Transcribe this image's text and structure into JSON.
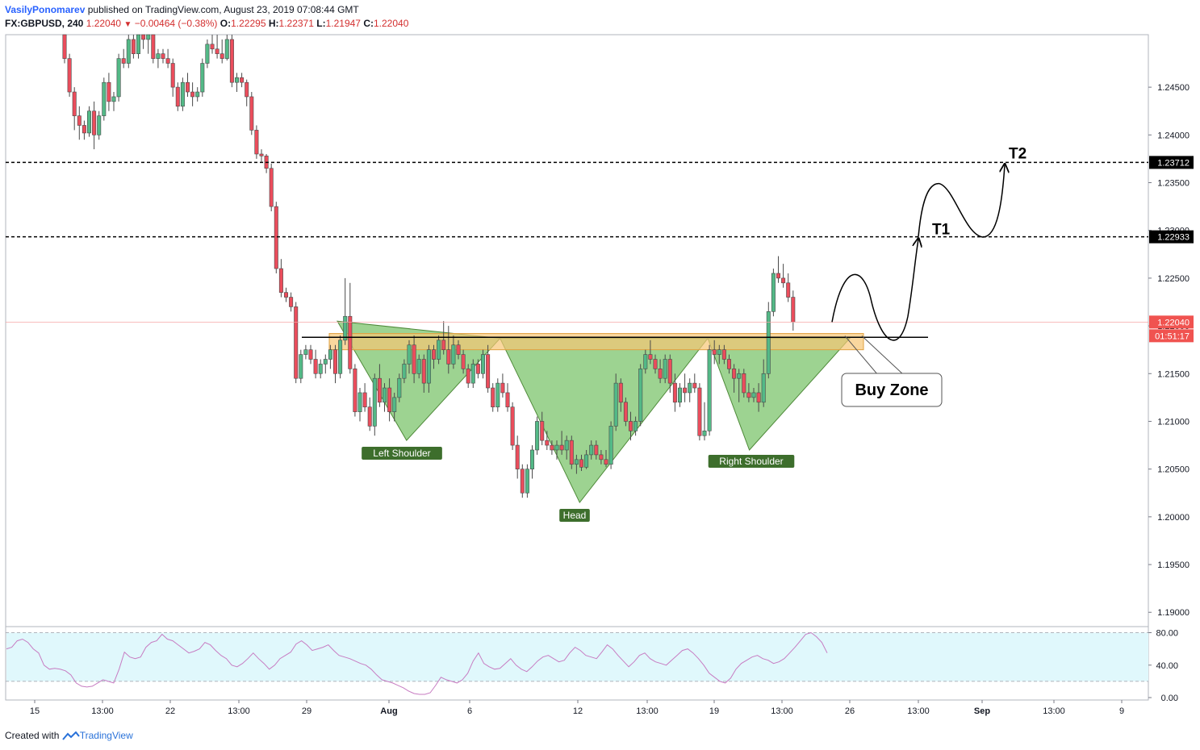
{
  "header": {
    "author": "VasilyPonomarev",
    "published": "published on TradingView.com, August 23, 2019 07:08:44 GMT",
    "symbol": "FX:GBPUSD, 240",
    "last": "1.22040",
    "change": "−0.00464 (−0.38%)",
    "o_label": "O:",
    "o": "1.22295",
    "h_label": "H:",
    "h": "1.22371",
    "l_label": "L:",
    "l": "1.21947",
    "c_label": "C:",
    "c": "1.22040"
  },
  "footer": {
    "created_with": "Created with",
    "brand": "TradingView"
  },
  "colors": {
    "up": "#53b987",
    "down": "#eb4d5c",
    "pattern_fill": "#8ccb7e",
    "zone_fill": "#f7c675",
    "label_bg": "#3d6e2c",
    "rsi_line": "#c77cc2",
    "rsi_band": "#e0f8fc",
    "last_price": "#f05350"
  },
  "chart_data": {
    "type": "candlestick",
    "y_axis": {
      "ticks": [
        "1.24500",
        "1.24000",
        "1.23500",
        "1.23000",
        "1.22500",
        "1.22000",
        "1.21500",
        "1.21000",
        "1.20500",
        "1.20000",
        "1.19500",
        "1.19000"
      ],
      "tick_values": [
        1.245,
        1.24,
        1.235,
        1.23,
        1.225,
        1.22,
        1.215,
        1.21,
        1.205,
        1.2,
        1.195,
        1.19
      ],
      "range": [
        1.1885,
        1.2505
      ]
    },
    "x_axis": {
      "ticks": [
        "15",
        "13:00",
        "22",
        "13:00",
        "29",
        "Aug",
        "6",
        "12",
        "13:00",
        "19",
        "13:00",
        "26",
        "13:00",
        "Sep",
        "13:00",
        "9"
      ],
      "bold": [
        "Aug",
        "Sep"
      ]
    },
    "price_labels": [
      {
        "text": "1.23712",
        "value": 1.23712
      },
      {
        "text": "1.22933",
        "value": 1.22933
      },
      {
        "text": "1.22040",
        "value": 1.2204
      },
      {
        "text": "01:51:17",
        "value": 1.2189
      }
    ],
    "horizontal_lines": [
      {
        "value": 1.23712,
        "style": "dashed",
        "label": "T2"
      },
      {
        "value": 1.22933,
        "style": "dashed",
        "label": "T1"
      }
    ],
    "neckline": 1.2188,
    "buy_zone": [
      1.2175,
      1.2192
    ],
    "pattern_labels": [
      "Left Shoulder",
      "Head",
      "Right Shoulder"
    ],
    "annotation": "Buy Zone",
    "pattern_points": [
      {
        "t": 0,
        "v": 1.2205
      },
      {
        "t": 20,
        "v": 1.208
      },
      {
        "t": 47,
        "v": 1.2187
      },
      {
        "t": 70,
        "v": 1.2015
      },
      {
        "t": 107,
        "v": 1.2187
      },
      {
        "t": 119,
        "v": 1.207
      },
      {
        "t": 148,
        "v": 1.2187
      }
    ],
    "candles": [
      {
        "o": 1.2515,
        "h": 1.2525,
        "l": 1.2475,
        "c": 1.248
      },
      {
        "o": 1.248,
        "h": 1.2485,
        "l": 1.244,
        "c": 1.2445
      },
      {
        "o": 1.2445,
        "h": 1.245,
        "l": 1.2405,
        "c": 1.242
      },
      {
        "o": 1.242,
        "h": 1.243,
        "l": 1.2395,
        "c": 1.241
      },
      {
        "o": 1.241,
        "h": 1.2415,
        "l": 1.2395,
        "c": 1.2402
      },
      {
        "o": 1.2402,
        "h": 1.243,
        "l": 1.2398,
        "c": 1.2425
      },
      {
        "o": 1.2425,
        "h": 1.2435,
        "l": 1.2385,
        "c": 1.24
      },
      {
        "o": 1.24,
        "h": 1.2425,
        "l": 1.2395,
        "c": 1.242
      },
      {
        "o": 1.242,
        "h": 1.246,
        "l": 1.2415,
        "c": 1.2455
      },
      {
        "o": 1.2455,
        "h": 1.2465,
        "l": 1.2425,
        "c": 1.2435
      },
      {
        "o": 1.2435,
        "h": 1.2445,
        "l": 1.2425,
        "c": 1.244
      },
      {
        "o": 1.244,
        "h": 1.2485,
        "l": 1.2435,
        "c": 1.248
      },
      {
        "o": 1.248,
        "h": 1.249,
        "l": 1.247,
        "c": 1.2475
      },
      {
        "o": 1.2475,
        "h": 1.2505,
        "l": 1.247,
        "c": 1.25
      },
      {
        "o": 1.25,
        "h": 1.251,
        "l": 1.248,
        "c": 1.2485
      },
      {
        "o": 1.2485,
        "h": 1.2515,
        "l": 1.248,
        "c": 1.251
      },
      {
        "o": 1.251,
        "h": 1.2525,
        "l": 1.249,
        "c": 1.25
      },
      {
        "o": 1.25,
        "h": 1.2515,
        "l": 1.2485,
        "c": 1.2505
      },
      {
        "o": 1.2505,
        "h": 1.251,
        "l": 1.2475,
        "c": 1.248
      },
      {
        "o": 1.248,
        "h": 1.249,
        "l": 1.247,
        "c": 1.2485
      },
      {
        "o": 1.2485,
        "h": 1.249,
        "l": 1.2475,
        "c": 1.248
      },
      {
        "o": 1.248,
        "h": 1.249,
        "l": 1.247,
        "c": 1.2475
      },
      {
        "o": 1.2475,
        "h": 1.248,
        "l": 1.244,
        "c": 1.245
      },
      {
        "o": 1.245,
        "h": 1.2455,
        "l": 1.2425,
        "c": 1.243
      },
      {
        "o": 1.243,
        "h": 1.246,
        "l": 1.2425,
        "c": 1.2455
      },
      {
        "o": 1.2455,
        "h": 1.2465,
        "l": 1.244,
        "c": 1.2445
      },
      {
        "o": 1.2445,
        "h": 1.2455,
        "l": 1.243,
        "c": 1.244
      },
      {
        "o": 1.244,
        "h": 1.245,
        "l": 1.2435,
        "c": 1.2445
      },
      {
        "o": 1.2445,
        "h": 1.248,
        "l": 1.244,
        "c": 1.2475
      },
      {
        "o": 1.2475,
        "h": 1.25,
        "l": 1.247,
        "c": 1.2495
      },
      {
        "o": 1.2495,
        "h": 1.251,
        "l": 1.2485,
        "c": 1.249
      },
      {
        "o": 1.249,
        "h": 1.2505,
        "l": 1.248,
        "c": 1.2485
      },
      {
        "o": 1.2485,
        "h": 1.25,
        "l": 1.2475,
        "c": 1.248
      },
      {
        "o": 1.248,
        "h": 1.2505,
        "l": 1.2478,
        "c": 1.25
      },
      {
        "o": 1.25,
        "h": 1.2505,
        "l": 1.245,
        "c": 1.2455
      },
      {
        "o": 1.2455,
        "h": 1.2465,
        "l": 1.2445,
        "c": 1.246
      },
      {
        "o": 1.246,
        "h": 1.2465,
        "l": 1.245,
        "c": 1.2455
      },
      {
        "o": 1.2455,
        "h": 1.2458,
        "l": 1.243,
        "c": 1.244
      },
      {
        "o": 1.244,
        "h": 1.2445,
        "l": 1.24,
        "c": 1.2405
      },
      {
        "o": 1.2405,
        "h": 1.241,
        "l": 1.2375,
        "c": 1.238
      },
      {
        "o": 1.238,
        "h": 1.2385,
        "l": 1.2372,
        "c": 1.2378
      },
      {
        "o": 1.2378,
        "h": 1.238,
        "l": 1.236,
        "c": 1.2365
      },
      {
        "o": 1.2365,
        "h": 1.237,
        "l": 1.232,
        "c": 1.2325
      },
      {
        "o": 1.2325,
        "h": 1.233,
        "l": 1.2255,
        "c": 1.226
      },
      {
        "o": 1.226,
        "h": 1.227,
        "l": 1.223,
        "c": 1.2235
      },
      {
        "o": 1.2235,
        "h": 1.224,
        "l": 1.2225,
        "c": 1.223
      },
      {
        "o": 1.223,
        "h": 1.2235,
        "l": 1.2215,
        "c": 1.222
      },
      {
        "o": 1.222,
        "h": 1.2225,
        "l": 1.214,
        "c": 1.2145
      },
      {
        "o": 1.2145,
        "h": 1.2175,
        "l": 1.214,
        "c": 1.217
      },
      {
        "o": 1.217,
        "h": 1.218,
        "l": 1.2165,
        "c": 1.2175
      },
      {
        "o": 1.2175,
        "h": 1.218,
        "l": 1.216,
        "c": 1.2165
      },
      {
        "o": 1.2165,
        "h": 1.2175,
        "l": 1.2145,
        "c": 1.215
      },
      {
        "o": 1.215,
        "h": 1.2165,
        "l": 1.2145,
        "c": 1.216
      },
      {
        "o": 1.216,
        "h": 1.217,
        "l": 1.215,
        "c": 1.2165
      },
      {
        "o": 1.2165,
        "h": 1.218,
        "l": 1.2155,
        "c": 1.2175
      },
      {
        "o": 1.2175,
        "h": 1.218,
        "l": 1.214,
        "c": 1.215
      },
      {
        "o": 1.215,
        "h": 1.219,
        "l": 1.2145,
        "c": 1.2185
      },
      {
        "o": 1.2185,
        "h": 1.225,
        "l": 1.218,
        "c": 1.221
      },
      {
        "o": 1.221,
        "h": 1.2245,
        "l": 1.215,
        "c": 1.2155
      },
      {
        "o": 1.2155,
        "h": 1.216,
        "l": 1.2105,
        "c": 1.211
      },
      {
        "o": 1.211,
        "h": 1.2135,
        "l": 1.21,
        "c": 1.213
      },
      {
        "o": 1.213,
        "h": 1.214,
        "l": 1.211,
        "c": 1.2115
      },
      {
        "o": 1.2115,
        "h": 1.2125,
        "l": 1.209,
        "c": 1.2095
      },
      {
        "o": 1.2095,
        "h": 1.215,
        "l": 1.2085,
        "c": 1.2145
      },
      {
        "o": 1.2145,
        "h": 1.216,
        "l": 1.2115,
        "c": 1.212
      },
      {
        "o": 1.212,
        "h": 1.214,
        "l": 1.211,
        "c": 1.2135
      },
      {
        "o": 1.2135,
        "h": 1.2145,
        "l": 1.21,
        "c": 1.211
      },
      {
        "o": 1.211,
        "h": 1.213,
        "l": 1.21,
        "c": 1.2125
      },
      {
        "o": 1.2125,
        "h": 1.215,
        "l": 1.212,
        "c": 1.2145
      },
      {
        "o": 1.2145,
        "h": 1.2165,
        "l": 1.214,
        "c": 1.216
      },
      {
        "o": 1.216,
        "h": 1.2185,
        "l": 1.215,
        "c": 1.218
      },
      {
        "o": 1.218,
        "h": 1.219,
        "l": 1.214,
        "c": 1.215
      },
      {
        "o": 1.215,
        "h": 1.217,
        "l": 1.2145,
        "c": 1.2165
      },
      {
        "o": 1.2165,
        "h": 1.217,
        "l": 1.213,
        "c": 1.214
      },
      {
        "o": 1.214,
        "h": 1.218,
        "l": 1.213,
        "c": 1.2175
      },
      {
        "o": 1.2175,
        "h": 1.218,
        "l": 1.2155,
        "c": 1.2165
      },
      {
        "o": 1.2165,
        "h": 1.219,
        "l": 1.216,
        "c": 1.2185
      },
      {
        "o": 1.2185,
        "h": 1.2205,
        "l": 1.217,
        "c": 1.2175
      },
      {
        "o": 1.2175,
        "h": 1.22,
        "l": 1.215,
        "c": 1.216
      },
      {
        "o": 1.216,
        "h": 1.219,
        "l": 1.2155,
        "c": 1.218
      },
      {
        "o": 1.218,
        "h": 1.2185,
        "l": 1.2165,
        "c": 1.217
      },
      {
        "o": 1.217,
        "h": 1.2175,
        "l": 1.215,
        "c": 1.2155
      },
      {
        "o": 1.2155,
        "h": 1.216,
        "l": 1.2135,
        "c": 1.214
      },
      {
        "o": 1.214,
        "h": 1.2165,
        "l": 1.2135,
        "c": 1.216
      },
      {
        "o": 1.216,
        "h": 1.2165,
        "l": 1.2145,
        "c": 1.215
      },
      {
        "o": 1.215,
        "h": 1.2175,
        "l": 1.2145,
        "c": 1.217
      },
      {
        "o": 1.217,
        "h": 1.218,
        "l": 1.213,
        "c": 1.2135
      },
      {
        "o": 1.2135,
        "h": 1.214,
        "l": 1.211,
        "c": 1.2115
      },
      {
        "o": 1.2115,
        "h": 1.2145,
        "l": 1.211,
        "c": 1.214
      },
      {
        "o": 1.214,
        "h": 1.215,
        "l": 1.2125,
        "c": 1.213
      },
      {
        "o": 1.213,
        "h": 1.214,
        "l": 1.211,
        "c": 1.2115
      },
      {
        "o": 1.2115,
        "h": 1.212,
        "l": 1.207,
        "c": 1.2075
      },
      {
        "o": 1.2075,
        "h": 1.2085,
        "l": 1.204,
        "c": 1.205
      },
      {
        "o": 1.205,
        "h": 1.2055,
        "l": 1.202,
        "c": 1.2025
      },
      {
        "o": 1.2025,
        "h": 1.2055,
        "l": 1.202,
        "c": 1.205
      },
      {
        "o": 1.205,
        "h": 1.2075,
        "l": 1.204,
        "c": 1.207
      },
      {
        "o": 1.207,
        "h": 1.2105,
        "l": 1.2065,
        "c": 1.21
      },
      {
        "o": 1.21,
        "h": 1.211,
        "l": 1.2075,
        "c": 1.208
      },
      {
        "o": 1.208,
        "h": 1.209,
        "l": 1.207,
        "c": 1.2075
      },
      {
        "o": 1.2075,
        "h": 1.208,
        "l": 1.2065,
        "c": 1.207
      },
      {
        "o": 1.207,
        "h": 1.208,
        "l": 1.206,
        "c": 1.2075
      },
      {
        "o": 1.2075,
        "h": 1.209,
        "l": 1.2065,
        "c": 1.207
      },
      {
        "o": 1.207,
        "h": 1.2085,
        "l": 1.206,
        "c": 1.208
      },
      {
        "o": 1.208,
        "h": 1.2085,
        "l": 1.205,
        "c": 1.2055
      },
      {
        "o": 1.2055,
        "h": 1.2065,
        "l": 1.2045,
        "c": 1.206
      },
      {
        "o": 1.206,
        "h": 1.2065,
        "l": 1.2048,
        "c": 1.2052
      },
      {
        "o": 1.2052,
        "h": 1.207,
        "l": 1.205,
        "c": 1.2065
      },
      {
        "o": 1.2065,
        "h": 1.208,
        "l": 1.206,
        "c": 1.2075
      },
      {
        "o": 1.2075,
        "h": 1.208,
        "l": 1.206,
        "c": 1.2065
      },
      {
        "o": 1.2065,
        "h": 1.207,
        "l": 1.2055,
        "c": 1.206
      },
      {
        "o": 1.206,
        "h": 1.207,
        "l": 1.2052,
        "c": 1.2055
      },
      {
        "o": 1.2055,
        "h": 1.21,
        "l": 1.205,
        "c": 1.2095
      },
      {
        "o": 1.2095,
        "h": 1.215,
        "l": 1.209,
        "c": 1.214
      },
      {
        "o": 1.214,
        "h": 1.2145,
        "l": 1.211,
        "c": 1.212
      },
      {
        "o": 1.212,
        "h": 1.2125,
        "l": 1.2095,
        "c": 1.21
      },
      {
        "o": 1.21,
        "h": 1.211,
        "l": 1.208,
        "c": 1.209
      },
      {
        "o": 1.209,
        "h": 1.2105,
        "l": 1.2085,
        "c": 1.21
      },
      {
        "o": 1.21,
        "h": 1.216,
        "l": 1.2095,
        "c": 1.2155
      },
      {
        "o": 1.2155,
        "h": 1.2175,
        "l": 1.215,
        "c": 1.217
      },
      {
        "o": 1.217,
        "h": 1.2185,
        "l": 1.216,
        "c": 1.2165
      },
      {
        "o": 1.2165,
        "h": 1.217,
        "l": 1.215,
        "c": 1.2155
      },
      {
        "o": 1.2155,
        "h": 1.2165,
        "l": 1.214,
        "c": 1.2145
      },
      {
        "o": 1.2145,
        "h": 1.217,
        "l": 1.214,
        "c": 1.2165
      },
      {
        "o": 1.2165,
        "h": 1.217,
        "l": 1.213,
        "c": 1.214
      },
      {
        "o": 1.214,
        "h": 1.215,
        "l": 1.211,
        "c": 1.212
      },
      {
        "o": 1.212,
        "h": 1.214,
        "l": 1.2115,
        "c": 1.2135
      },
      {
        "o": 1.2135,
        "h": 1.215,
        "l": 1.212,
        "c": 1.213
      },
      {
        "o": 1.213,
        "h": 1.2145,
        "l": 1.212,
        "c": 1.214
      },
      {
        "o": 1.214,
        "h": 1.215,
        "l": 1.213,
        "c": 1.2135
      },
      {
        "o": 1.2135,
        "h": 1.214,
        "l": 1.208,
        "c": 1.2085
      },
      {
        "o": 1.2085,
        "h": 1.212,
        "l": 1.208,
        "c": 1.209
      },
      {
        "o": 1.209,
        "h": 1.218,
        "l": 1.2085,
        "c": 1.2175
      },
      {
        "o": 1.2175,
        "h": 1.2185,
        "l": 1.216,
        "c": 1.217
      },
      {
        "o": 1.217,
        "h": 1.218,
        "l": 1.216,
        "c": 1.2175
      },
      {
        "o": 1.2175,
        "h": 1.218,
        "l": 1.216,
        "c": 1.2165
      },
      {
        "o": 1.2165,
        "h": 1.217,
        "l": 1.215,
        "c": 1.2155
      },
      {
        "o": 1.2155,
        "h": 1.216,
        "l": 1.213,
        "c": 1.2145
      },
      {
        "o": 1.2145,
        "h": 1.2155,
        "l": 1.212,
        "c": 1.215
      },
      {
        "o": 1.215,
        "h": 1.2155,
        "l": 1.2125,
        "c": 1.213
      },
      {
        "o": 1.213,
        "h": 1.214,
        "l": 1.212,
        "c": 1.2125
      },
      {
        "o": 1.2125,
        "h": 1.2135,
        "l": 1.212,
        "c": 1.213
      },
      {
        "o": 1.213,
        "h": 1.214,
        "l": 1.211,
        "c": 1.212
      },
      {
        "o": 1.212,
        "h": 1.2165,
        "l": 1.2115,
        "c": 1.215
      },
      {
        "o": 1.215,
        "h": 1.2225,
        "l": 1.2145,
        "c": 1.2215
      },
      {
        "o": 1.2215,
        "h": 1.226,
        "l": 1.221,
        "c": 1.2255
      },
      {
        "o": 1.2255,
        "h": 1.2273,
        "l": 1.2245,
        "c": 1.225
      },
      {
        "o": 1.225,
        "h": 1.2265,
        "l": 1.224,
        "c": 1.2245
      },
      {
        "o": 1.2245,
        "h": 1.2255,
        "l": 1.2225,
        "c": 1.223
      },
      {
        "o": 1.223,
        "h": 1.2237,
        "l": 1.2195,
        "c": 1.2204
      }
    ],
    "rsi": {
      "levels": [
        "80.00",
        "40.00",
        "0.00"
      ],
      "level_values": [
        80,
        40,
        0
      ],
      "band": [
        20,
        80
      ],
      "values": [
        60,
        62,
        70,
        72,
        68,
        60,
        55,
        40,
        35,
        36,
        35,
        33,
        28,
        18,
        14,
        13,
        14,
        18,
        22,
        20,
        18,
        35,
        56,
        50,
        48,
        50,
        62,
        68,
        70,
        78,
        72,
        70,
        65,
        60,
        55,
        57,
        60,
        68,
        65,
        58,
        52,
        48,
        40,
        38,
        42,
        48,
        55,
        48,
        42,
        35,
        40,
        48,
        52,
        56,
        66,
        70,
        65,
        58,
        60,
        62,
        65,
        58,
        52,
        50,
        48,
        45,
        42,
        40,
        35,
        28,
        22,
        20,
        18,
        15,
        12,
        8,
        5,
        4,
        4,
        6,
        15,
        25,
        22,
        20,
        18,
        22,
        30,
        45,
        55,
        42,
        38,
        35,
        36,
        42,
        48,
        40,
        35,
        32,
        38,
        45,
        50,
        52,
        48,
        44,
        46,
        55,
        62,
        58,
        52,
        50,
        48,
        56,
        65,
        60,
        52,
        45,
        38,
        44,
        52,
        55,
        48,
        44,
        42,
        40,
        46,
        52,
        58,
        60,
        55,
        48,
        40,
        30,
        25,
        20,
        18,
        24,
        35,
        42,
        46,
        50,
        52,
        48,
        46,
        42,
        44,
        48,
        55,
        62,
        70,
        78,
        80,
        75,
        68,
        55
      ]
    }
  }
}
